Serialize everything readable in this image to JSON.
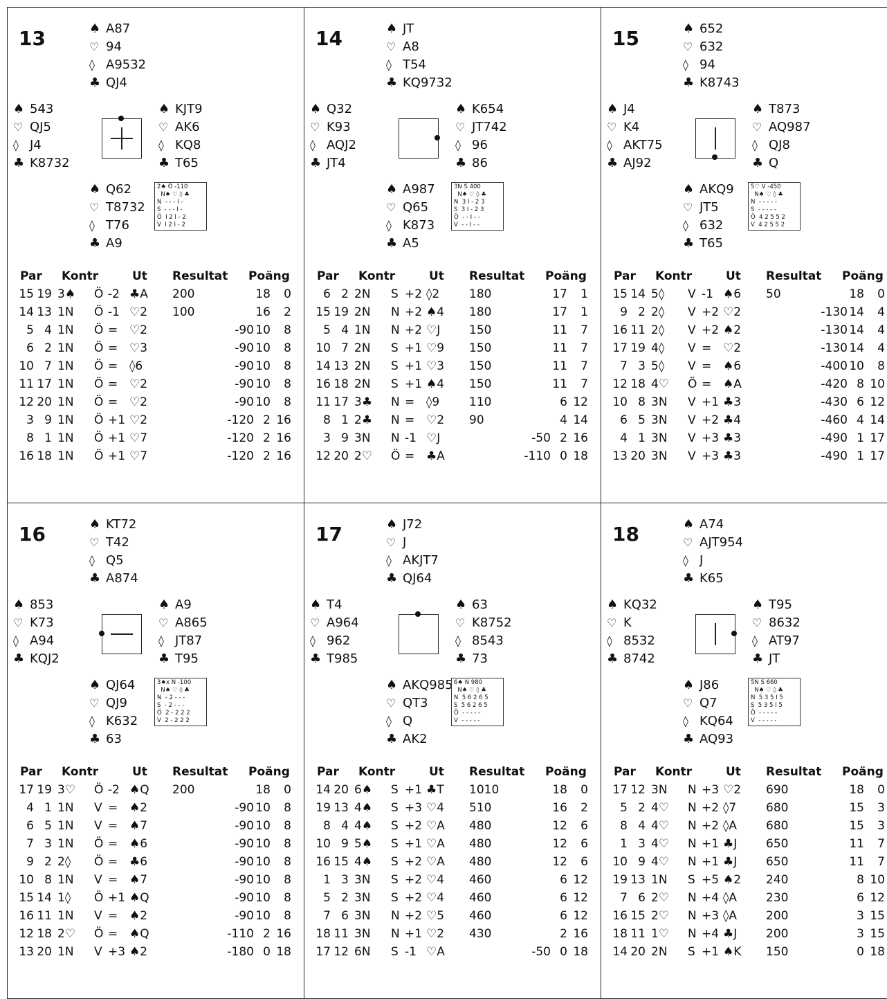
{
  "header": {
    "par": "Par",
    "kontr": "Kontr",
    "ut": "Ut",
    "resultat": "Resultat",
    "poang": "Poäng"
  },
  "boards": [
    {
      "num": "13",
      "north": {
        "s": "A87",
        "h": "94",
        "d": "A9532",
        "c": "QJ4"
      },
      "west": {
        "s": "543",
        "h": "QJ5",
        "d": "J4",
        "c": "K8732"
      },
      "east": {
        "s": "KJT9",
        "h": "AK6",
        "d": "KQ8",
        "c": "T65"
      },
      "south": {
        "s": "Q62",
        "h": "T8732",
        "d": "T76",
        "c": "A9"
      },
      "indicator": "plus",
      "mini": [
        "2♠ Ö -110",
        "  N♠ ♡ ◊ ♣",
        "N  - - - I -",
        "S  - - - I -",
        "Ö  I 2 I - 2",
        "V  I 2 I - 2"
      ],
      "rows": [
        [
          "15",
          "19",
          "3♠",
          "Ö",
          "-2",
          "♣A",
          "200",
          "",
          "18",
          "0"
        ],
        [
          "14",
          "13",
          "1N",
          "Ö",
          "-1",
          "♡2",
          "100",
          "",
          "16",
          "2"
        ],
        [
          "5",
          "4",
          "1N",
          "Ö",
          "=",
          "♡2",
          "",
          "-90",
          "10",
          "8"
        ],
        [
          "6",
          "2",
          "1N",
          "Ö",
          "=",
          "♡3",
          "",
          "-90",
          "10",
          "8"
        ],
        [
          "10",
          "7",
          "1N",
          "Ö",
          "=",
          "◊6",
          "",
          "-90",
          "10",
          "8"
        ],
        [
          "11",
          "17",
          "1N",
          "Ö",
          "=",
          "♡2",
          "",
          "-90",
          "10",
          "8"
        ],
        [
          "12",
          "20",
          "1N",
          "Ö",
          "=",
          "♡2",
          "",
          "-90",
          "10",
          "8"
        ],
        [
          "3",
          "9",
          "1N",
          "Ö",
          "+1",
          "♡2",
          "",
          "-120",
          "2",
          "16"
        ],
        [
          "8",
          "1",
          "1N",
          "Ö",
          "+1",
          "♡7",
          "",
          "-120",
          "2",
          "16"
        ],
        [
          "16",
          "18",
          "1N",
          "Ö",
          "+1",
          "♡7",
          "",
          "-120",
          "2",
          "16"
        ]
      ]
    },
    {
      "num": "14",
      "north": {
        "s": "JT",
        "h": "A8",
        "d": "T54",
        "c": "KQ9732"
      },
      "west": {
        "s": "Q32",
        "h": "K93",
        "d": "AQJ2",
        "c": "JT4"
      },
      "east": {
        "s": "K654",
        "h": "JT742",
        "d": "96",
        "c": "86"
      },
      "south": {
        "s": "A987",
        "h": "Q65",
        "d": "K873",
        "c": "A5"
      },
      "indicator": "box-east",
      "mini": [
        "3N S 400",
        "  N♠ ♡ ◊ ♣",
        "N  3 I - 2 3",
        "S  3 I - 2 3",
        "Ö  - - I - -",
        "V  - - I - -"
      ],
      "rows": [
        [
          "6",
          "2",
          "2N",
          "S",
          "+2",
          "◊2",
          "180",
          "",
          "17",
          "1"
        ],
        [
          "15",
          "19",
          "2N",
          "N",
          "+2",
          "♠4",
          "180",
          "",
          "17",
          "1"
        ],
        [
          "5",
          "4",
          "1N",
          "N",
          "+2",
          "♡J",
          "150",
          "",
          "11",
          "7"
        ],
        [
          "10",
          "7",
          "2N",
          "S",
          "+1",
          "♡9",
          "150",
          "",
          "11",
          "7"
        ],
        [
          "14",
          "13",
          "2N",
          "S",
          "+1",
          "♡3",
          "150",
          "",
          "11",
          "7"
        ],
        [
          "16",
          "18",
          "2N",
          "S",
          "+1",
          "♠4",
          "150",
          "",
          "11",
          "7"
        ],
        [
          "11",
          "17",
          "3♣",
          "N",
          "=",
          "◊9",
          "110",
          "",
          "6",
          "12"
        ],
        [
          "8",
          "1",
          "2♣",
          "N",
          "=",
          "♡2",
          "90",
          "",
          "4",
          "14"
        ],
        [
          "3",
          "9",
          "3N",
          "N",
          "-1",
          "♡J",
          "",
          "-50",
          "2",
          "16"
        ],
        [
          "12",
          "20",
          "2♡",
          "Ö",
          "=",
          "♣A",
          "",
          "-110",
          "0",
          "18"
        ]
      ]
    },
    {
      "num": "15",
      "north": {
        "s": "652",
        "h": "632",
        "d": "94",
        "c": "K8743"
      },
      "west": {
        "s": "J4",
        "h": "K4",
        "d": "AKT75",
        "c": "AJ92"
      },
      "east": {
        "s": "T873",
        "h": "AQ987",
        "d": "QJ8",
        "c": "Q"
      },
      "south": {
        "s": "AKQ9",
        "h": "JT5",
        "d": "632",
        "c": "T65"
      },
      "indicator": "vline-south",
      "mini": [
        "5♡ V -450",
        "  N♠ ♡ ◊ ♣",
        "N  - - - - -",
        "S  - - - - -",
        "Ö  4 2 5 5 2",
        "V  4 2 5 5 2"
      ],
      "rows": [
        [
          "15",
          "14",
          "5◊",
          "V",
          "-1",
          "♠6",
          "50",
          "",
          "18",
          "0"
        ],
        [
          "9",
          "2",
          "2◊",
          "V",
          "+2",
          "♡2",
          "",
          "-130",
          "14",
          "4"
        ],
        [
          "16",
          "11",
          "2◊",
          "V",
          "+2",
          "♠2",
          "",
          "-130",
          "14",
          "4"
        ],
        [
          "17",
          "19",
          "4◊",
          "V",
          "=",
          "♡2",
          "",
          "-130",
          "14",
          "4"
        ],
        [
          "7",
          "3",
          "5◊",
          "V",
          "=",
          "♠6",
          "",
          "-400",
          "10",
          "8"
        ],
        [
          "12",
          "18",
          "4♡",
          "Ö",
          "=",
          "♠A",
          "",
          "-420",
          "8",
          "10"
        ],
        [
          "10",
          "8",
          "3N",
          "V",
          "+1",
          "♣3",
          "",
          "-430",
          "6",
          "12"
        ],
        [
          "6",
          "5",
          "3N",
          "V",
          "+2",
          "♣4",
          "",
          "-460",
          "4",
          "14"
        ],
        [
          "4",
          "1",
          "3N",
          "V",
          "+3",
          "♣3",
          "",
          "-490",
          "1",
          "17"
        ],
        [
          "13",
          "20",
          "3N",
          "V",
          "+3",
          "♣3",
          "",
          "-490",
          "1",
          "17"
        ]
      ]
    },
    {
      "num": "16",
      "north": {
        "s": "KT72",
        "h": "T42",
        "d": "Q5",
        "c": "A874"
      },
      "west": {
        "s": "853",
        "h": "K73",
        "d": "A94",
        "c": "KQJ2"
      },
      "east": {
        "s": "A9",
        "h": "A865",
        "d": "JT87",
        "c": "T95"
      },
      "south": {
        "s": "QJ64",
        "h": "QJ9",
        "d": "K632",
        "c": "63"
      },
      "indicator": "hline-west",
      "mini": [
        "3♠x N -100",
        "  N♠ ♡ ◊ ♣",
        "N  - 2 - - -",
        "S  - 2 - - -",
        "Ö  2 - 2 2 2",
        "V  2 - 2 2 2"
      ],
      "rows": [
        [
          "17",
          "19",
          "3♡",
          "Ö",
          "-2",
          "♠Q",
          "200",
          "",
          "18",
          "0"
        ],
        [
          "4",
          "1",
          "1N",
          "V",
          "=",
          "♠2",
          "",
          "-90",
          "10",
          "8"
        ],
        [
          "6",
          "5",
          "1N",
          "V",
          "=",
          "♠7",
          "",
          "-90",
          "10",
          "8"
        ],
        [
          "7",
          "3",
          "1N",
          "Ö",
          "=",
          "♠6",
          "",
          "-90",
          "10",
          "8"
        ],
        [
          "9",
          "2",
          "2◊",
          "Ö",
          "=",
          "♣6",
          "",
          "-90",
          "10",
          "8"
        ],
        [
          "10",
          "8",
          "1N",
          "V",
          "=",
          "♠7",
          "",
          "-90",
          "10",
          "8"
        ],
        [
          "15",
          "14",
          "1◊",
          "Ö",
          "+1",
          "♠Q",
          "",
          "-90",
          "10",
          "8"
        ],
        [
          "16",
          "11",
          "1N",
          "V",
          "=",
          "♠2",
          "",
          "-90",
          "10",
          "8"
        ],
        [
          "12",
          "18",
          "2♡",
          "Ö",
          "=",
          "♠Q",
          "",
          "-110",
          "2",
          "16"
        ],
        [
          "13",
          "20",
          "1N",
          "V",
          "+3",
          "♠2",
          "",
          "-180",
          "0",
          "18"
        ]
      ]
    },
    {
      "num": "17",
      "north": {
        "s": "J72",
        "h": "J",
        "d": "AKJT7",
        "c": "QJ64"
      },
      "west": {
        "s": "T4",
        "h": "A964",
        "d": "962",
        "c": "T985"
      },
      "east": {
        "s": "63",
        "h": "K8752",
        "d": "8543",
        "c": "73"
      },
      "south": {
        "s": "AKQ985",
        "h": "QT3",
        "d": "Q",
        "c": "AK2"
      },
      "indicator": "box-north",
      "mini": [
        "6♠ N 980",
        "  N♠ ♡ ◊ ♣",
        "N  5 6 2 6 5",
        "S  5 6 2 6 5",
        "Ö  - - - - -",
        "V  - - - - -"
      ],
      "rows": [
        [
          "14",
          "20",
          "6♠",
          "S",
          "+1",
          "♣T",
          "1010",
          "",
          "18",
          "0"
        ],
        [
          "19",
          "13",
          "4♠",
          "S",
          "+3",
          "♡4",
          "510",
          "",
          "16",
          "2"
        ],
        [
          "8",
          "4",
          "4♠",
          "S",
          "+2",
          "♡A",
          "480",
          "",
          "12",
          "6"
        ],
        [
          "10",
          "9",
          "5♠",
          "S",
          "+1",
          "♡A",
          "480",
          "",
          "12",
          "6"
        ],
        [
          "16",
          "15",
          "4♠",
          "S",
          "+2",
          "♡A",
          "480",
          "",
          "12",
          "6"
        ],
        [
          "1",
          "3",
          "3N",
          "S",
          "+2",
          "♡4",
          "460",
          "",
          "6",
          "12"
        ],
        [
          "5",
          "2",
          "3N",
          "S",
          "+2",
          "♡4",
          "460",
          "",
          "6",
          "12"
        ],
        [
          "7",
          "6",
          "3N",
          "N",
          "+2",
          "♡5",
          "460",
          "",
          "6",
          "12"
        ],
        [
          "18",
          "11",
          "3N",
          "N",
          "+1",
          "♡2",
          "430",
          "",
          "2",
          "16"
        ],
        [
          "17",
          "12",
          "6N",
          "S",
          "-1",
          "♡A",
          "",
          "-50",
          "0",
          "18"
        ]
      ]
    },
    {
      "num": "18",
      "north": {
        "s": "A74",
        "h": "AJT954",
        "d": "J",
        "c": "K65"
      },
      "west": {
        "s": "KQ32",
        "h": "K",
        "d": "8532",
        "c": "8742"
      },
      "east": {
        "s": "T95",
        "h": "8632",
        "d": "AT97",
        "c": "JT"
      },
      "south": {
        "s": "J86",
        "h": "Q7",
        "d": "KQ64",
        "c": "AQ93"
      },
      "indicator": "vline-east",
      "mini": [
        "5N S 660",
        "  N♠ ♡ ◊ ♣",
        "N  5 3 5 I 5",
        "S  5 3 5 I 5",
        "Ö  - - - - -",
        "V  - - - - -"
      ],
      "rows": [
        [
          "17",
          "12",
          "3N",
          "N",
          "+3",
          "♡2",
          "690",
          "",
          "18",
          "0"
        ],
        [
          "5",
          "2",
          "4♡",
          "N",
          "+2",
          "◊7",
          "680",
          "",
          "15",
          "3"
        ],
        [
          "8",
          "4",
          "4♡",
          "N",
          "+2",
          "◊A",
          "680",
          "",
          "15",
          "3"
        ],
        [
          "1",
          "3",
          "4♡",
          "N",
          "+1",
          "♣J",
          "650",
          "",
          "11",
          "7"
        ],
        [
          "10",
          "9",
          "4♡",
          "N",
          "+1",
          "♣J",
          "650",
          "",
          "11",
          "7"
        ],
        [
          "19",
          "13",
          "1N",
          "S",
          "+5",
          "♠2",
          "240",
          "",
          "8",
          "10"
        ],
        [
          "7",
          "6",
          "2♡",
          "N",
          "+4",
          "◊A",
          "230",
          "",
          "6",
          "12"
        ],
        [
          "16",
          "15",
          "2♡",
          "N",
          "+3",
          "◊A",
          "200",
          "",
          "3",
          "15"
        ],
        [
          "18",
          "11",
          "1♡",
          "N",
          "+4",
          "♣J",
          "200",
          "",
          "3",
          "15"
        ],
        [
          "14",
          "20",
          "2N",
          "S",
          "+1",
          "♠K",
          "150",
          "",
          "0",
          "18"
        ]
      ]
    }
  ]
}
